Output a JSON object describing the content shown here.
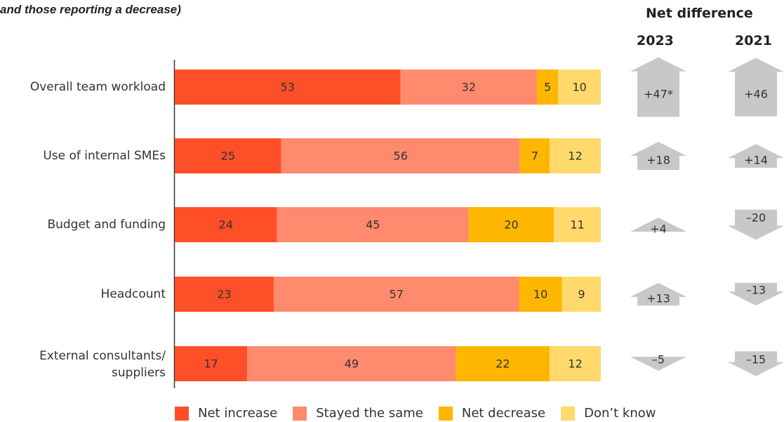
{
  "subtitle": "and those reporting a decrease)",
  "net_header": "Net difference",
  "year_2023": "2023",
  "year_2021": "2021",
  "colors": {
    "net_increase": "#ff4f28",
    "stayed_same": "#ff8a6e",
    "net_decrease": "#ffb600",
    "dont_know": "#ffd96b",
    "arrow": "#c8c8c8"
  },
  "legend": [
    "Net increase",
    "Stayed the same",
    "Net decrease",
    "Don’t know"
  ],
  "chart_data": {
    "type": "bar",
    "stacked": true,
    "orientation": "horizontal",
    "categories": [
      "Overall team workload",
      "Use of internal SMEs",
      "Budget and funding",
      "Headcount",
      "External consultants/ suppliers"
    ],
    "series": [
      {
        "name": "Net increase",
        "values": [
          53,
          25,
          24,
          23,
          17
        ]
      },
      {
        "name": "Stayed the same",
        "values": [
          32,
          56,
          45,
          57,
          49
        ]
      },
      {
        "name": "Net decrease",
        "values": [
          5,
          7,
          20,
          10,
          22
        ]
      },
      {
        "name": "Don’t know",
        "values": [
          10,
          12,
          11,
          9,
          12
        ]
      }
    ],
    "net_difference": {
      "2023": [
        "+47*",
        "+18",
        "+4",
        "+13",
        "–5"
      ],
      "2021": [
        "+46",
        "+14",
        "–20",
        "–13",
        "–15"
      ]
    },
    "net_difference_values": {
      "2023": [
        47,
        18,
        4,
        13,
        -5
      ],
      "2021": [
        46,
        14,
        -20,
        -13,
        -15
      ]
    }
  }
}
